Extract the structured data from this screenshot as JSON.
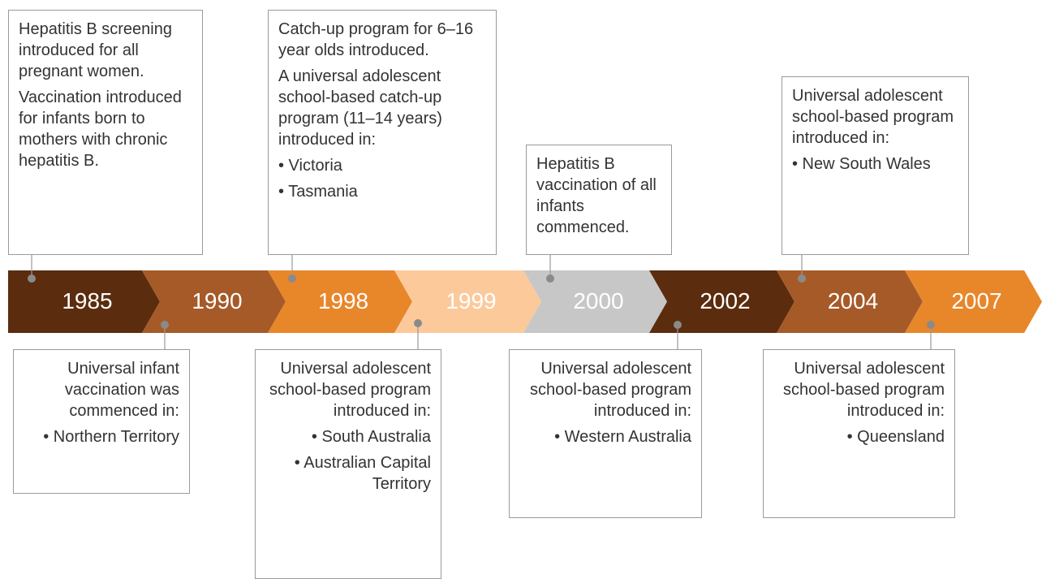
{
  "timeline": {
    "segments": [
      {
        "year": "1985",
        "color": "#5b2c0d"
      },
      {
        "year": "1990",
        "color": "#a65a28"
      },
      {
        "year": "1998",
        "color": "#e8862a"
      },
      {
        "year": "1999",
        "color": "#fcc99b"
      },
      {
        "year": "2000",
        "color": "#c7c7c7"
      },
      {
        "year": "2002",
        "color": "#5b2c0d"
      },
      {
        "year": "2004",
        "color": "#a65a28"
      },
      {
        "year": "2007",
        "color": "#e8862a"
      }
    ],
    "callouts": [
      {
        "paragraphs": [
          "Hepatitis B screening introduced for all pregnant women.",
          "Vaccination introduced for infants born to mothers with chronic hepatitis B."
        ],
        "bullets": []
      },
      {
        "paragraphs": [
          "Universal infant vaccination was commenced in:"
        ],
        "bullets": [
          "• Northern Territory"
        ]
      },
      {
        "paragraphs": [
          "Catch-up program for 6–16 year olds introduced.",
          "A universal adolescent school-based catch-up program (11–14 years) introduced in:"
        ],
        "bullets": [
          "• Victoria",
          "• Tasmania"
        ]
      },
      {
        "paragraphs": [
          "Universal adolescent school-based program introduced in:"
        ],
        "bullets": [
          "• South Australia",
          "• Australian Capital Territory"
        ]
      },
      {
        "paragraphs": [
          "Hepatitis B vaccination of all infants commenced."
        ],
        "bullets": []
      },
      {
        "paragraphs": [
          "Universal adolescent school-based program introduced in:"
        ],
        "bullets": [
          "• Western Australia"
        ]
      },
      {
        "paragraphs": [
          "Universal adolescent school-based program introduced in:"
        ],
        "bullets": [
          "• New South Wales"
        ]
      },
      {
        "paragraphs": [
          "Universal adolescent school-based program introduced in:"
        ],
        "bullets": [
          "• Queensland"
        ]
      }
    ]
  }
}
